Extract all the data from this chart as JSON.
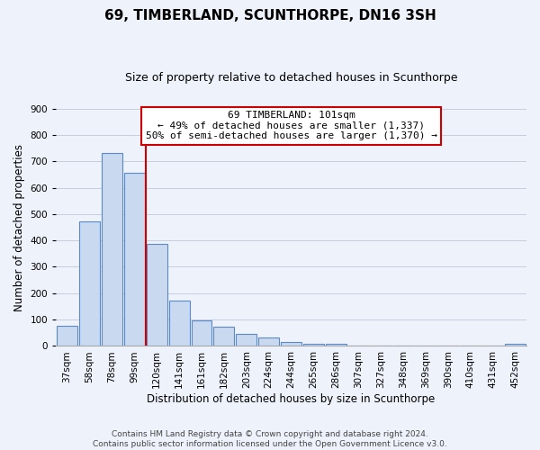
{
  "title": "69, TIMBERLAND, SCUNTHORPE, DN16 3SH",
  "subtitle": "Size of property relative to detached houses in Scunthorpe",
  "xlabel": "Distribution of detached houses by size in Scunthorpe",
  "ylabel": "Number of detached properties",
  "bar_labels": [
    "37sqm",
    "58sqm",
    "78sqm",
    "99sqm",
    "120sqm",
    "141sqm",
    "161sqm",
    "182sqm",
    "203sqm",
    "224sqm",
    "244sqm",
    "265sqm",
    "286sqm",
    "307sqm",
    "327sqm",
    "348sqm",
    "369sqm",
    "390sqm",
    "410sqm",
    "431sqm",
    "452sqm"
  ],
  "bar_values": [
    75,
    473,
    733,
    657,
    388,
    172,
    97,
    74,
    46,
    33,
    14,
    10,
    8,
    0,
    0,
    0,
    0,
    0,
    0,
    0,
    7
  ],
  "bar_color": "#c9d9f0",
  "bar_edge_color": "#5b8ac8",
  "vline_x_index": 3,
  "vline_color": "#cc0000",
  "ylim": [
    0,
    900
  ],
  "yticks": [
    0,
    100,
    200,
    300,
    400,
    500,
    600,
    700,
    800,
    900
  ],
  "annotation_title": "69 TIMBERLAND: 101sqm",
  "annotation_line1": "← 49% of detached houses are smaller (1,337)",
  "annotation_line2": "50% of semi-detached houses are larger (1,370) →",
  "annotation_box_color": "#ffffff",
  "annotation_box_edge": "#cc0000",
  "footer1": "Contains HM Land Registry data © Crown copyright and database right 2024.",
  "footer2": "Contains public sector information licensed under the Open Government Licence v3.0.",
  "bg_color": "#eef2fb",
  "grid_color": "#c5cde0",
  "title_fontsize": 11,
  "subtitle_fontsize": 9,
  "axis_label_fontsize": 8.5,
  "tick_fontsize": 7.5,
  "annotation_fontsize": 8,
  "footer_fontsize": 6.5
}
